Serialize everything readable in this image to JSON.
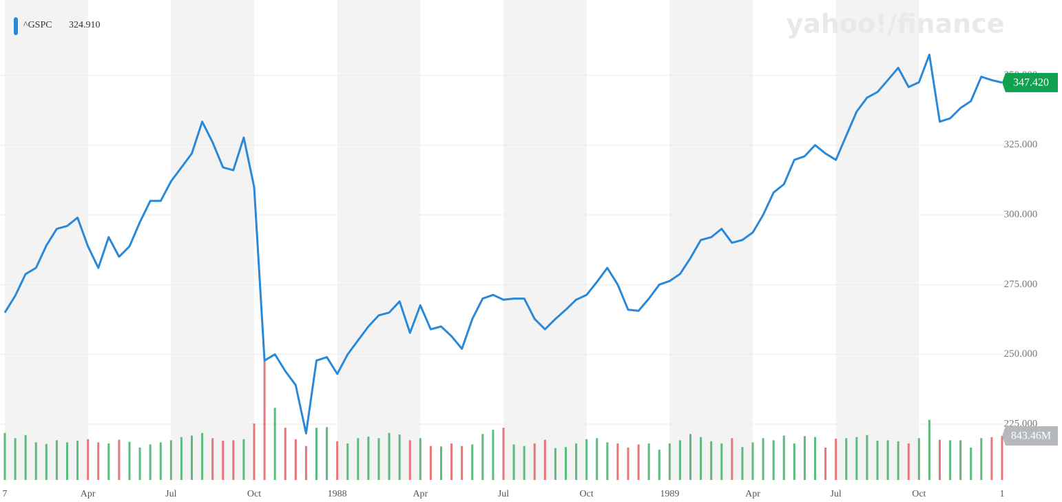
{
  "chart_data": {
    "type": "line",
    "symbol": "^GSPC",
    "header_value": "324.910",
    "watermark": "yahoo!/finance",
    "categories": [
      "7",
      null,
      null,
      null,
      null,
      null,
      null,
      null,
      "Apr",
      null,
      null,
      null,
      null,
      null,
      null,
      null,
      "Jul",
      null,
      null,
      null,
      null,
      null,
      null,
      null,
      "Oct",
      null,
      null,
      null,
      null,
      null,
      null,
      null,
      "1988",
      null,
      null,
      null,
      null,
      null,
      null,
      null,
      "Apr",
      null,
      null,
      null,
      null,
      null,
      null,
      null,
      "Jul",
      null,
      null,
      null,
      null,
      null,
      null,
      null,
      "Oct",
      null,
      null,
      null,
      null,
      null,
      null,
      null,
      "1989",
      null,
      null,
      null,
      null,
      null,
      null,
      null,
      "Apr",
      null,
      null,
      null,
      null,
      null,
      null,
      null,
      "Jul",
      null,
      null,
      null,
      null,
      null,
      null,
      null,
      "Oct",
      null,
      null,
      null,
      null,
      null,
      null,
      null,
      "1"
    ],
    "series": [
      {
        "color": "#2a88d8",
        "values": [
          265,
          271,
          278.8,
          281,
          289,
          295,
          296,
          299,
          288.7,
          281,
          292,
          285,
          288.7,
          297.4,
          305,
          305,
          312,
          317,
          322,
          333.4,
          326,
          317,
          316,
          327.7,
          310,
          247.8,
          250,
          244,
          239,
          221.7,
          247.8,
          249,
          243,
          250,
          255,
          260,
          264,
          265,
          269,
          257.7,
          267.6,
          259,
          260,
          256.5,
          252,
          262.7,
          270,
          271.3,
          269.6,
          270,
          270,
          262.7,
          259,
          262.7,
          266,
          269.6,
          271.3,
          276,
          281,
          275,
          266,
          265.6,
          270,
          275,
          276.3,
          278.8,
          284.5,
          291,
          292,
          295,
          290,
          291,
          293.7,
          300,
          308,
          311,
          319.7,
          321,
          325,
          322,
          319.7,
          328.4,
          337,
          342,
          344,
          348.3,
          352.7,
          345.8,
          347.5,
          357.4,
          333.4,
          334.6,
          338.3,
          340.8,
          349.5,
          348.3,
          347.42
        ]
      }
    ],
    "ylim": [
      205,
      377
    ],
    "yticks": [
      {
        "value": 225,
        "label": "225.000"
      },
      {
        "value": 250,
        "label": "250.000"
      },
      {
        "value": 275,
        "label": "275.000"
      },
      {
        "value": 300,
        "label": "300.000"
      },
      {
        "value": 325,
        "label": "325.000"
      },
      {
        "value": 350,
        "label": "350.000"
      }
    ],
    "last_price_label": "347.420",
    "last_price_color": "#0fa14f",
    "volume": {
      "axis": "y2",
      "up_color": "#5dbb7e",
      "down_color": "#e8757a",
      "last_label": "843.46M",
      "label_color": "#b5b8bd",
      "values": [
        900,
        800,
        860,
        720,
        690,
        760,
        720,
        750,
        780,
        720,
        700,
        770,
        730,
        620,
        680,
        720,
        760,
        820,
        850,
        900,
        800,
        750,
        760,
        780,
        1080,
        2330,
        1380,
        1000,
        780,
        650,
        1000,
        1010,
        740,
        700,
        800,
        830,
        800,
        900,
        870,
        760,
        800,
        650,
        640,
        700,
        650,
        680,
        880,
        960,
        1000,
        680,
        650,
        700,
        770,
        610,
        630,
        700,
        780,
        800,
        720,
        700,
        620,
        680,
        700,
        580,
        700,
        760,
        880,
        820,
        740,
        700,
        800,
        630,
        720,
        800,
        760,
        850,
        700,
        840,
        820,
        620,
        790,
        800,
        820,
        860,
        750,
        760,
        740,
        700,
        800,
        1150,
        770,
        760,
        760,
        620,
        800,
        820,
        843.46
      ]
    },
    "y2lim": [
      0,
      9186
    ],
    "grid": true,
    "shade": "#f3f3f3"
  }
}
